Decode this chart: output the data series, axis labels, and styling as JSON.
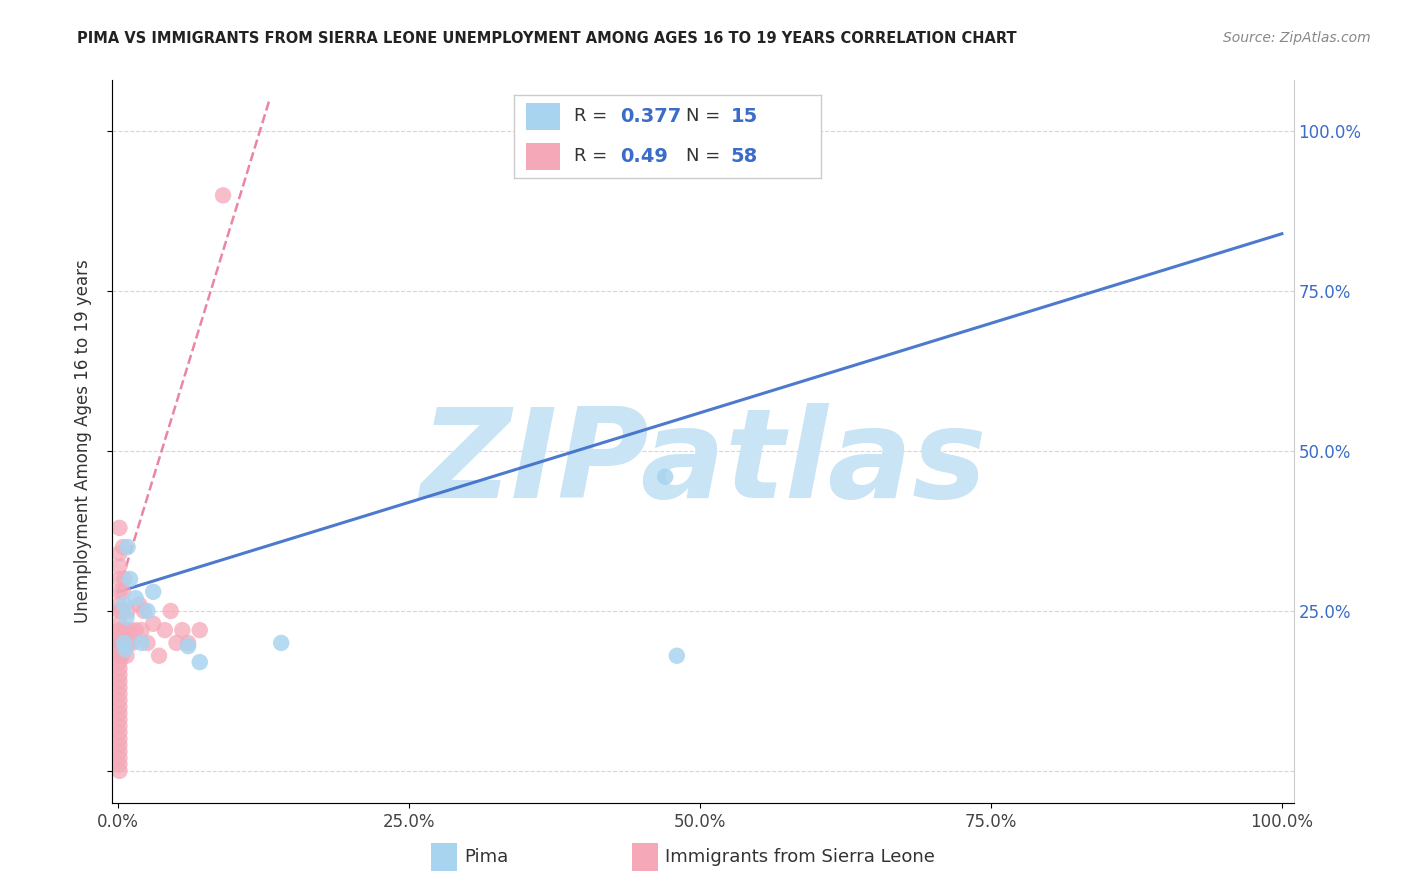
{
  "title": "PIMA VS IMMIGRANTS FROM SIERRA LEONE UNEMPLOYMENT AMONG AGES 16 TO 19 YEARS CORRELATION CHART",
  "source": "Source: ZipAtlas.com",
  "ylabel": "Unemployment Among Ages 16 to 19 years",
  "pima_color": "#A8D4F0",
  "sierra_leone_color": "#F5A8B8",
  "pima_line_color": "#3A6CC8",
  "sierra_leone_line_color": "#E87090",
  "pima_R": 0.377,
  "pima_N": 15,
  "sierra_leone_R": 0.49,
  "sierra_leone_N": 58,
  "legend_text_color": "#3A6CC8",
  "watermark_text": "ZIPatlas",
  "watermark_color": "#C8E4F5",
  "grid_color": "#cccccc",
  "bg_color": "#ffffff",
  "pima_scatter_x": [
    0.005,
    0.005,
    0.006,
    0.007,
    0.008,
    0.01,
    0.015,
    0.02,
    0.025,
    0.03,
    0.06,
    0.07,
    0.14,
    0.47,
    0.48
  ],
  "pima_scatter_y": [
    0.2,
    0.26,
    0.19,
    0.24,
    0.35,
    0.3,
    0.27,
    0.2,
    0.25,
    0.28,
    0.195,
    0.17,
    0.2,
    0.46,
    0.18
  ],
  "sl_scatter_x": [
    0.001,
    0.001,
    0.001,
    0.001,
    0.001,
    0.001,
    0.001,
    0.001,
    0.001,
    0.001,
    0.001,
    0.001,
    0.001,
    0.001,
    0.001,
    0.001,
    0.001,
    0.001,
    0.001,
    0.001,
    0.001,
    0.001,
    0.001,
    0.001,
    0.001,
    0.001,
    0.001,
    0.001,
    0.001,
    0.001,
    0.001,
    0.002,
    0.003,
    0.003,
    0.004,
    0.004,
    0.005,
    0.005,
    0.006,
    0.007,
    0.008,
    0.009,
    0.01,
    0.012,
    0.015,
    0.018,
    0.02,
    0.022,
    0.025,
    0.03,
    0.035,
    0.04,
    0.045,
    0.05,
    0.055,
    0.06,
    0.07,
    0.09
  ],
  "sl_scatter_y": [
    0.0,
    0.01,
    0.02,
    0.03,
    0.04,
    0.05,
    0.06,
    0.07,
    0.08,
    0.09,
    0.1,
    0.11,
    0.12,
    0.13,
    0.14,
    0.15,
    0.16,
    0.17,
    0.18,
    0.19,
    0.2,
    0.21,
    0.22,
    0.23,
    0.25,
    0.26,
    0.28,
    0.3,
    0.32,
    0.34,
    0.38,
    0.2,
    0.18,
    0.25,
    0.28,
    0.35,
    0.2,
    0.3,
    0.22,
    0.18,
    0.25,
    0.2,
    0.22,
    0.2,
    0.22,
    0.26,
    0.22,
    0.25,
    0.2,
    0.23,
    0.18,
    0.22,
    0.25,
    0.2,
    0.22,
    0.2,
    0.22,
    0.9
  ],
  "pima_trend_x": [
    0.0,
    1.0
  ],
  "pima_trend_y": [
    0.28,
    0.84
  ],
  "sl_trend_x": [
    0.0,
    0.13
  ],
  "sl_trend_y": [
    0.28,
    1.05
  ],
  "xlim": [
    -0.005,
    1.01
  ],
  "ylim": [
    -0.05,
    1.08
  ]
}
